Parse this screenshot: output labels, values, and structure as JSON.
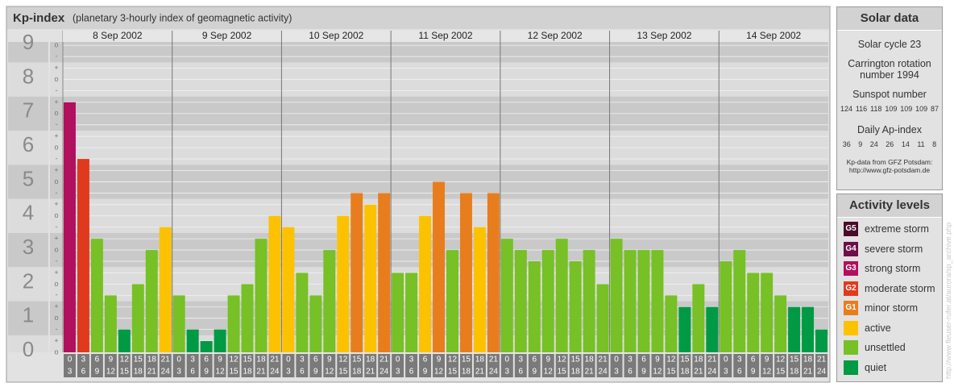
{
  "chart_data": {
    "type": "bar",
    "title": "Kp-index",
    "subtitle": "(planetary 3-hourly index of geomagnetic activity)",
    "days": [
      "8 Sep 2002",
      "9 Sep 2002",
      "10 Sep 2002",
      "11 Sep 2002",
      "12 Sep 2002",
      "13 Sep 2002",
      "14 Sep 2002"
    ],
    "intervals": [
      {
        "from": "0",
        "to": "3"
      },
      {
        "from": "3",
        "to": "6"
      },
      {
        "from": "6",
        "to": "9"
      },
      {
        "from": "9",
        "to": "12"
      },
      {
        "from": "12",
        "to": "15"
      },
      {
        "from": "15",
        "to": "18"
      },
      {
        "from": "18",
        "to": "21"
      },
      {
        "from": "21",
        "to": "24"
      }
    ],
    "values": [
      7.33,
      5.67,
      3.33,
      1.67,
      0.67,
      2,
      3,
      3.67,
      1.67,
      0.67,
      0.33,
      0.67,
      1.67,
      2,
      3.33,
      4,
      3.67,
      2.33,
      1.67,
      3,
      4,
      4.67,
      4.33,
      4.67,
      2.33,
      2.33,
      4,
      5,
      3,
      4.67,
      3.67,
      4.67,
      3.33,
      3,
      2.67,
      3,
      3.33,
      2.67,
      3,
      2,
      3.33,
      3,
      3,
      3,
      1.67,
      1.33,
      2,
      1.33,
      2.67,
      3,
      2.33,
      2.33,
      1.67,
      1.33,
      1.33,
      0.67
    ],
    "colors": [
      "#b0105e",
      "#e03a1e",
      "#77c025",
      "#77c025",
      "#009a44",
      "#77c025",
      "#77c025",
      "#fcc200",
      "#77c025",
      "#009a44",
      "#009a44",
      "#009a44",
      "#77c025",
      "#77c025",
      "#77c025",
      "#fcc200",
      "#fcc200",
      "#77c025",
      "#77c025",
      "#77c025",
      "#fcc200",
      "#e87d1e",
      "#fcc200",
      "#e87d1e",
      "#77c025",
      "#77c025",
      "#fcc200",
      "#e87d1e",
      "#77c025",
      "#e87d1e",
      "#fcc200",
      "#e87d1e",
      "#77c025",
      "#77c025",
      "#77c025",
      "#77c025",
      "#77c025",
      "#77c025",
      "#77c025",
      "#77c025",
      "#77c025",
      "#77c025",
      "#77c025",
      "#77c025",
      "#77c025",
      "#009a44",
      "#77c025",
      "#009a44",
      "#77c025",
      "#77c025",
      "#77c025",
      "#77c025",
      "#77c025",
      "#009a44",
      "#009a44",
      "#009a44"
    ],
    "ylim": [
      0,
      9.1
    ],
    "yticks": [
      0,
      1,
      2,
      3,
      4,
      5,
      6,
      7,
      8,
      9
    ],
    "subticks": [
      {
        "value": 0,
        "label": "o"
      },
      {
        "value": 0.33,
        "label": "+"
      },
      {
        "value": 0.67,
        "label": "-"
      },
      {
        "value": 1,
        "label": "o"
      },
      {
        "value": 1.33,
        "label": "+"
      },
      {
        "value": 1.67,
        "label": "-"
      },
      {
        "value": 2,
        "label": "o"
      },
      {
        "value": 2.33,
        "label": "+"
      },
      {
        "value": 2.67,
        "label": "-"
      },
      {
        "value": 3,
        "label": "o"
      },
      {
        "value": 3.33,
        "label": "+"
      },
      {
        "value": 3.67,
        "label": "-"
      },
      {
        "value": 4,
        "label": "o"
      },
      {
        "value": 4.33,
        "label": "+"
      },
      {
        "value": 4.67,
        "label": "-"
      },
      {
        "value": 5,
        "label": "o"
      },
      {
        "value": 5.33,
        "label": "+"
      },
      {
        "value": 5.67,
        "label": "-"
      },
      {
        "value": 6,
        "label": "o"
      },
      {
        "value": 6.33,
        "label": "+"
      },
      {
        "value": 6.67,
        "label": "-"
      },
      {
        "value": 7,
        "label": "o"
      },
      {
        "value": 7.33,
        "label": "+"
      },
      {
        "value": 7.67,
        "label": "-"
      },
      {
        "value": 8,
        "label": "o"
      },
      {
        "value": 8.33,
        "label": "+"
      },
      {
        "value": 8.67,
        "label": "-"
      },
      {
        "value": 9,
        "label": "o"
      }
    ],
    "band_colors": [
      "#dcdcdc",
      "#c9c9c9"
    ],
    "grid": true
  },
  "solar_data": {
    "title": "Solar data",
    "cycle": "Solar cycle 23",
    "carrington": "Carrington rotation number 1994",
    "sunspot_title": "Sunspot number",
    "sunspot": [
      124,
      116,
      118,
      109,
      109,
      109,
      87
    ],
    "ap_title": "Daily Ap-index",
    "ap": [
      36,
      9,
      24,
      26,
      14,
      11,
      8
    ],
    "source": "Kp-data from GFZ Potsdam:",
    "url": "http://www.gfz-potsdam.de"
  },
  "legend": {
    "title": "Activity levels",
    "items": [
      {
        "badge": "G5",
        "label": "extreme storm",
        "color": "#4a0a2a"
      },
      {
        "badge": "G4",
        "label": "severe storm",
        "color": "#6d0d4a"
      },
      {
        "badge": "G3",
        "label": "strong storm",
        "color": "#b0105e"
      },
      {
        "badge": "G2",
        "label": "moderate storm",
        "color": "#e03a1e"
      },
      {
        "badge": "G1",
        "label": "minor storm",
        "color": "#e87d1e"
      },
      {
        "badge": "",
        "label": "active",
        "color": "#fcc200"
      },
      {
        "badge": "",
        "label": "unsettled",
        "color": "#77c025"
      },
      {
        "badge": "",
        "label": "quiet",
        "color": "#009a44"
      }
    ]
  },
  "credit": "http://www.fleuser-rufer.at/aurora/sp_archive.php"
}
